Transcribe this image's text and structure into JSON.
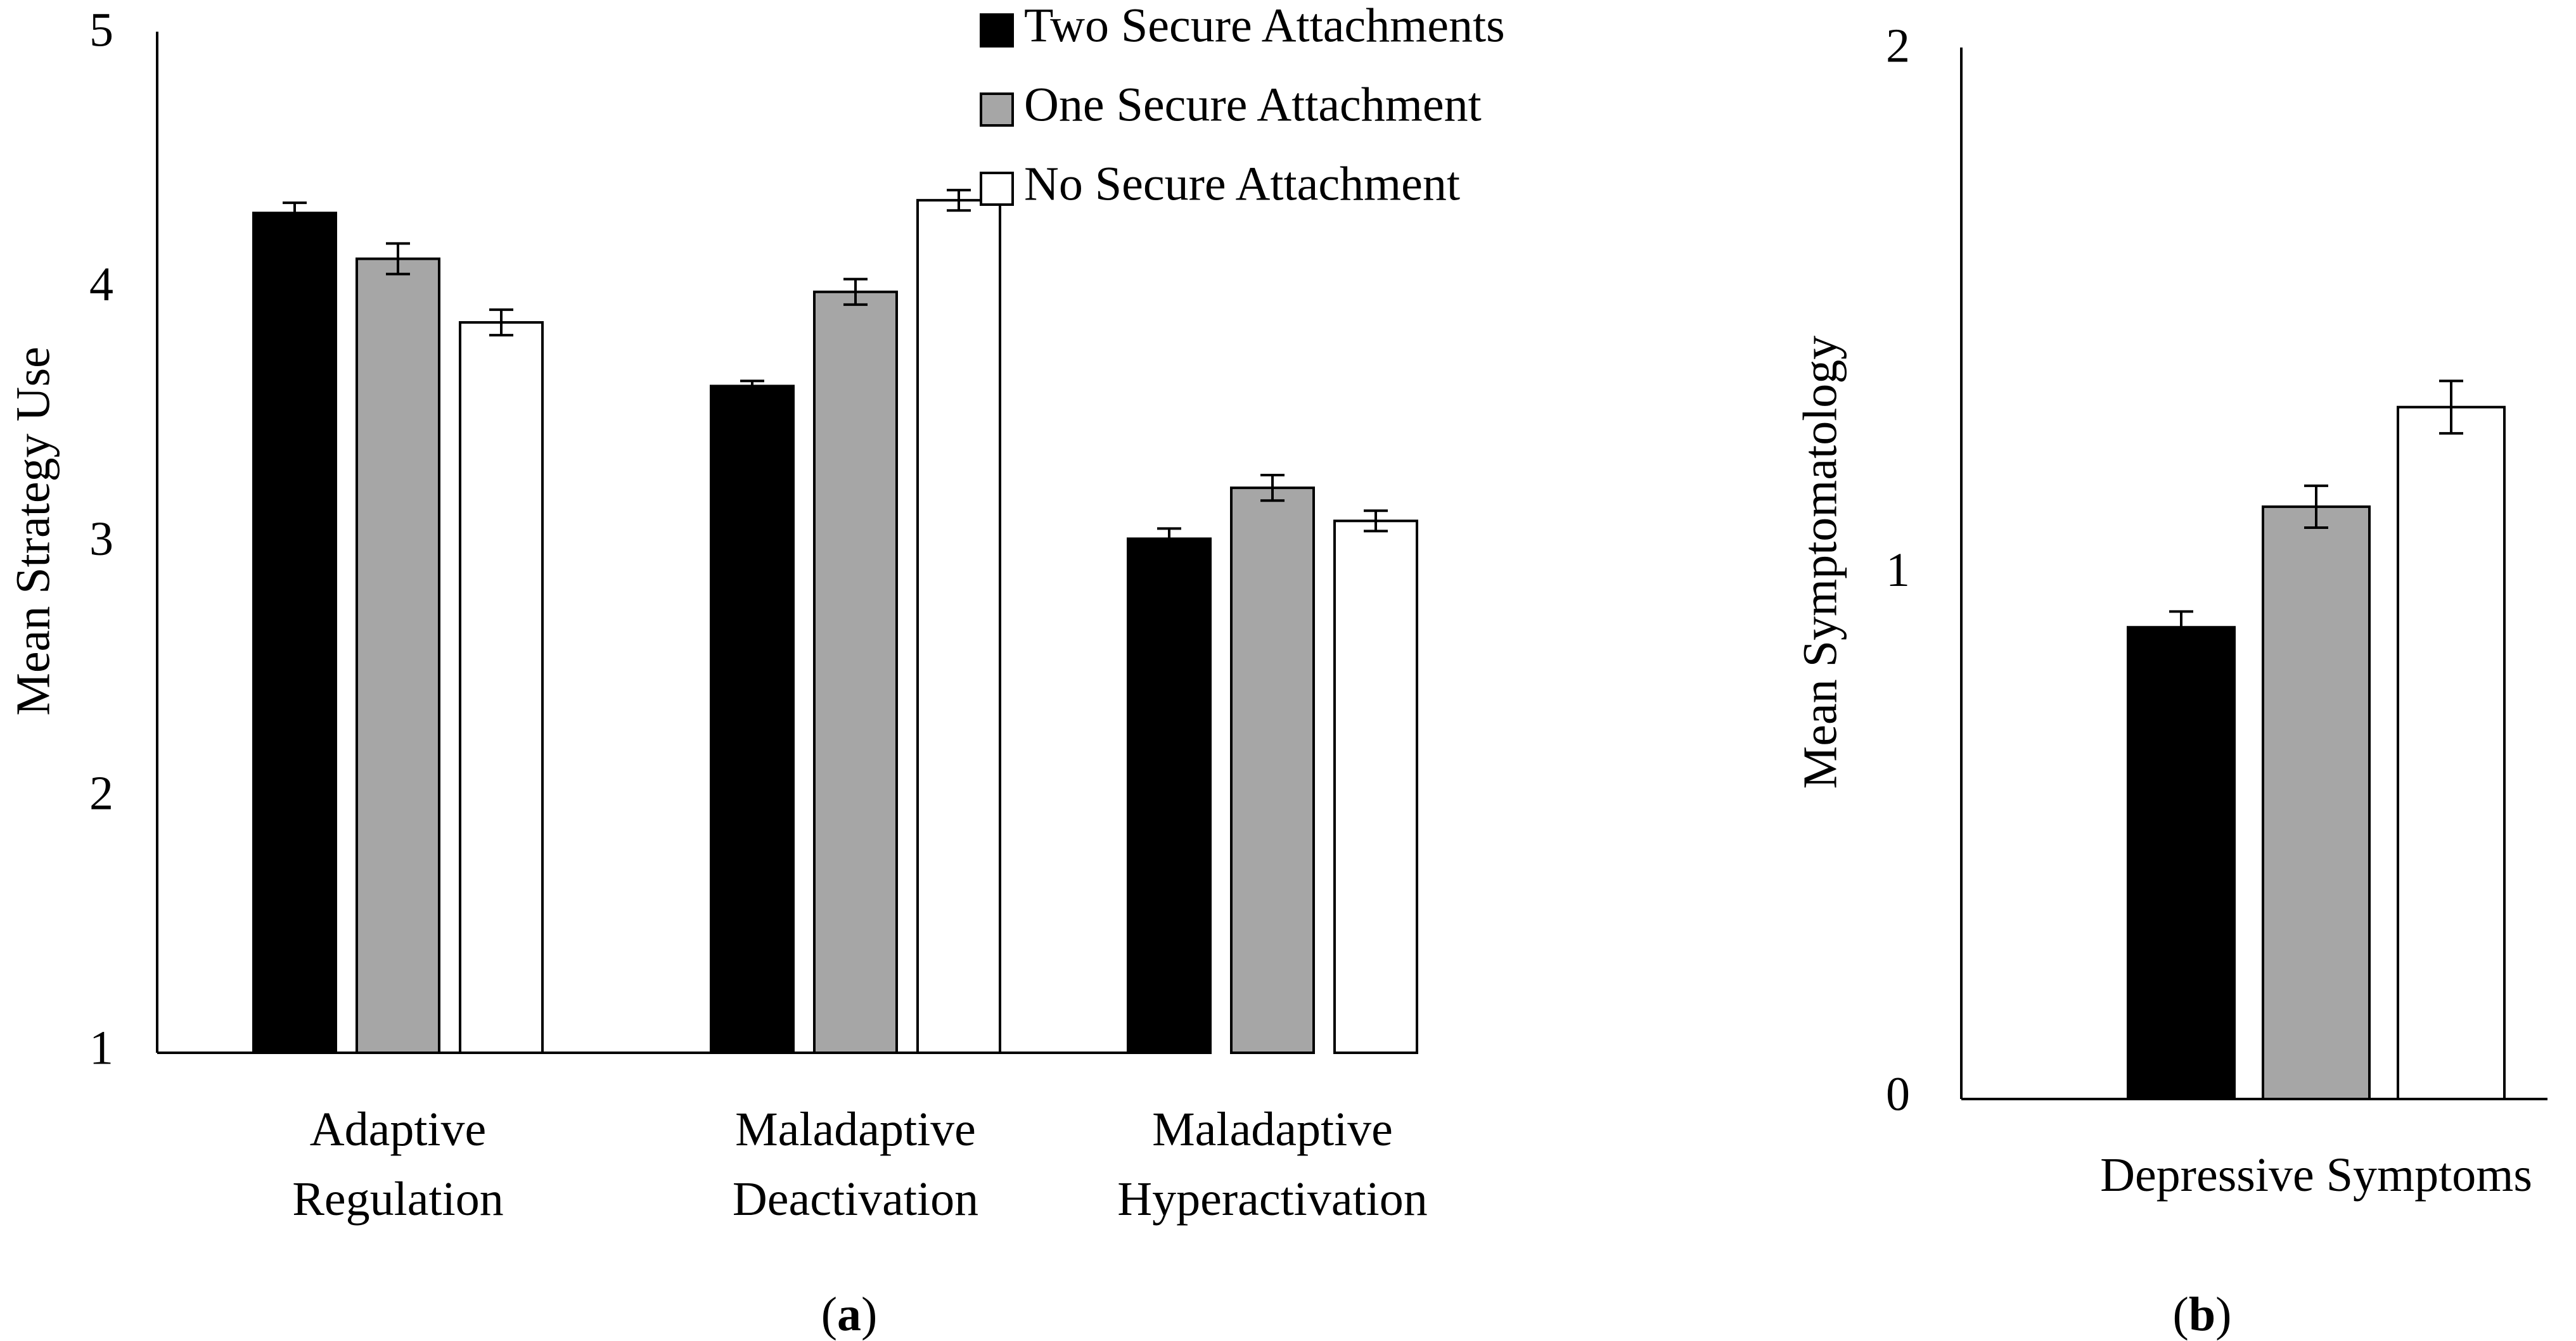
{
  "colors": {
    "series": [
      "#000000",
      "#a6a6a6",
      "#ffffff"
    ],
    "stroke": "#000000"
  },
  "chart_data": [
    {
      "type": "bar",
      "panel_label": {
        "open": "(",
        "letter": "a",
        "close": ")"
      },
      "ylabel": "Mean Strategy Use",
      "xlabel": "",
      "ylim": [
        1,
        5
      ],
      "yticks": [
        "1",
        "2",
        "3",
        "4",
        "5"
      ],
      "categories": [
        [
          "Adaptive",
          "Regulation"
        ],
        [
          "Maladaptive",
          "Deactivation"
        ],
        [
          "Maladaptive",
          "Hyperactivation"
        ]
      ],
      "series": [
        {
          "name": "Two Secure Attachments",
          "values": [
            4.3,
            3.62,
            3.02
          ],
          "errors": [
            0.04,
            0.02,
            0.04
          ]
        },
        {
          "name": "One Secure Attachment",
          "values": [
            4.12,
            3.99,
            3.22
          ],
          "errors": [
            0.06,
            0.05,
            0.05
          ]
        },
        {
          "name": "No Secure Attachment",
          "values": [
            3.87,
            4.35,
            3.09
          ],
          "errors": [
            0.05,
            0.04,
            0.04
          ]
        }
      ],
      "legend_position": "top-right",
      "grid": false
    },
    {
      "type": "bar",
      "panel_label": {
        "open": "(",
        "letter": "b",
        "close": ")"
      },
      "ylabel": "Mean Symptomatology",
      "xlabel": "",
      "ylim": [
        0,
        2
      ],
      "yticks": [
        "0",
        "1",
        "2"
      ],
      "categories": [
        [
          "Depressive Symptoms"
        ]
      ],
      "series": [
        {
          "name": "Two Secure Attachments",
          "values": [
            0.9
          ],
          "errors": [
            0.03
          ]
        },
        {
          "name": "One Secure Attachment",
          "values": [
            1.13
          ],
          "errors": [
            0.04
          ]
        },
        {
          "name": "No Secure Attachment",
          "values": [
            1.32
          ],
          "errors": [
            0.05
          ]
        }
      ],
      "grid": false
    }
  ]
}
